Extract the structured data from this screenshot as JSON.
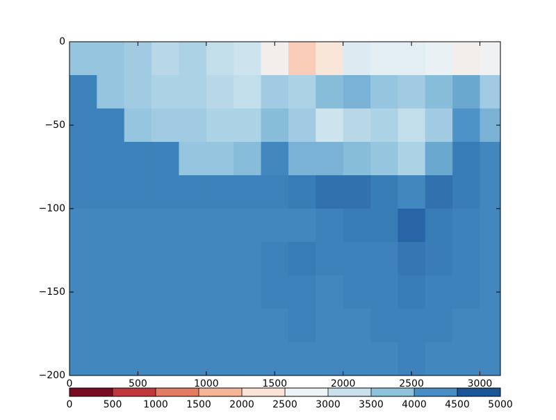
{
  "chart_data": {
    "type": "heatmap",
    "x_edges": [
      0,
      200,
      400,
      600,
      800,
      1000,
      1200,
      1400,
      1600,
      1800,
      2000,
      2200,
      2400,
      2600,
      2800,
      3000,
      3150
    ],
    "y_edges": [
      0,
      -20,
      -40,
      -60,
      -80,
      -100,
      -120,
      -140,
      -160,
      -180,
      -200
    ],
    "z": [
      [
        3700,
        3700,
        3600,
        3400,
        3500,
        3300,
        3200,
        2600,
        2000,
        2300,
        3000,
        2900,
        2900,
        2800,
        2600,
        2700
      ],
      [
        4350,
        3700,
        3600,
        3500,
        3500,
        3400,
        3300,
        3600,
        3500,
        3800,
        3900,
        3700,
        3600,
        3800,
        4000,
        3600
      ],
      [
        4350,
        4350,
        3700,
        3600,
        3600,
        3500,
        3500,
        3800,
        3600,
        3200,
        3400,
        3500,
        3300,
        3600,
        4200,
        3900
      ],
      [
        4350,
        4350,
        4350,
        4350,
        3700,
        3700,
        3800,
        4300,
        3900,
        3900,
        3800,
        3700,
        3500,
        4000,
        4400,
        4300
      ],
      [
        4350,
        4350,
        4350,
        4350,
        4350,
        4350,
        4350,
        4350,
        4400,
        4500,
        4500,
        4400,
        4300,
        4500,
        4400,
        4300
      ],
      [
        4300,
        4300,
        4300,
        4300,
        4300,
        4300,
        4300,
        4300,
        4300,
        4350,
        4400,
        4400,
        4600,
        4400,
        4350,
        4300
      ],
      [
        4300,
        4300,
        4300,
        4300,
        4300,
        4300,
        4300,
        4350,
        4400,
        4350,
        4350,
        4350,
        4450,
        4400,
        4350,
        4300
      ],
      [
        4300,
        4300,
        4300,
        4300,
        4300,
        4300,
        4300,
        4350,
        4350,
        4300,
        4350,
        4350,
        4400,
        4350,
        4350,
        4300
      ],
      [
        4300,
        4300,
        4300,
        4300,
        4300,
        4300,
        4300,
        4300,
        4350,
        4300,
        4300,
        4350,
        4350,
        4350,
        4300,
        4300
      ],
      [
        4300,
        4300,
        4300,
        4300,
        4300,
        4300,
        4300,
        4300,
        4300,
        4300,
        4300,
        4300,
        4350,
        4300,
        4300,
        4300
      ]
    ],
    "xlim": [
      0,
      3150
    ],
    "xticks": [
      0,
      500,
      1000,
      1500,
      2000,
      2500,
      3000
    ],
    "ylim": [
      -200,
      0
    ],
    "yticks": [
      {
        "value": 0,
        "label": "0"
      },
      {
        "value": -50,
        "label": "−50"
      },
      {
        "value": -100,
        "label": "−100"
      },
      {
        "value": -150,
        "label": "−150"
      },
      {
        "value": -200,
        "label": "−200"
      }
    ],
    "colorbar": {
      "bounds": [
        0,
        500,
        1000,
        1500,
        2000,
        2500,
        3000,
        3500,
        4000,
        4500,
        5000
      ],
      "colors": [
        "#7a0a22",
        "#c0383b",
        "#e37a62",
        "#f5b597",
        "#fbe3d6",
        "#eef3f6",
        "#c9e1ed",
        "#8fc2dd",
        "#468ec3",
        "#1c5499"
      ],
      "ticks": [
        0,
        500,
        1000,
        1500,
        2000,
        2500,
        3000,
        3500,
        4000,
        4500,
        5000
      ]
    }
  }
}
